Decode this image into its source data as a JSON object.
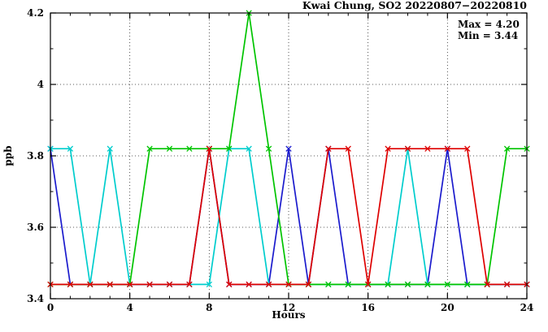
{
  "page": {
    "background": "#ffffff",
    "plot_border_color": "#000000",
    "grid_style": "dotted"
  },
  "chart_data": {
    "type": "line",
    "title": "Kwai Chung, SO2 20220807−20220810",
    "xlabel": "Hours",
    "ylabel": "ppb",
    "xlim": [
      0,
      24
    ],
    "ylim": [
      3.4,
      4.2
    ],
    "grid": "dotted",
    "legend_position": "none",
    "marker": "x-cross",
    "annotations": {
      "max_label": "Max = 4.20",
      "min_label": "Min = 3.44"
    },
    "xticks": {
      "values": [
        0,
        4,
        8,
        12,
        16,
        20,
        24
      ],
      "labels": [
        "0",
        "4",
        "8",
        "12",
        "16",
        "20",
        "24"
      ]
    },
    "yticks": {
      "values": [
        3.4,
        3.6,
        3.8,
        4.0,
        4.2
      ],
      "labels": [
        "3.4",
        "3.6",
        "3.8",
        "4",
        "4.2"
      ]
    },
    "x": [
      0,
      1,
      2,
      3,
      4,
      5,
      6,
      7,
      8,
      9,
      10,
      11,
      12,
      13,
      14,
      15,
      16,
      17,
      18,
      19,
      20,
      21,
      22,
      23,
      24
    ],
    "series": [
      {
        "name": "series-blue",
        "color": "#1b1bcd",
        "values": [
          3.82,
          3.44,
          3.44,
          3.44,
          3.44,
          3.44,
          3.44,
          3.44,
          3.82,
          3.44,
          3.44,
          3.44,
          3.82,
          3.44,
          3.82,
          3.44,
          3.44,
          3.44,
          3.44,
          3.44,
          3.82,
          3.44,
          3.44,
          3.44,
          3.44
        ]
      },
      {
        "name": "series-cyan",
        "color": "#00cdcd",
        "values": [
          3.82,
          3.82,
          3.44,
          3.82,
          3.44,
          3.44,
          3.44,
          3.44,
          3.44,
          3.82,
          3.82,
          3.44,
          3.44,
          3.44,
          3.44,
          3.44,
          3.44,
          3.44,
          3.82,
          3.44,
          3.44,
          3.44,
          3.44,
          3.44,
          3.44
        ]
      },
      {
        "name": "series-green",
        "color": "#00c400",
        "values": [
          3.44,
          3.44,
          3.44,
          3.44,
          3.44,
          3.82,
          3.82,
          3.82,
          3.82,
          3.82,
          4.2,
          3.82,
          3.44,
          3.44,
          3.44,
          3.44,
          3.44,
          3.44,
          3.44,
          3.44,
          3.44,
          3.44,
          3.44,
          3.82,
          3.82
        ]
      },
      {
        "name": "series-red",
        "color": "#de0000",
        "values": [
          3.44,
          3.44,
          3.44,
          3.44,
          3.44,
          3.44,
          3.44,
          3.44,
          3.82,
          3.44,
          3.44,
          3.44,
          3.44,
          3.44,
          3.82,
          3.82,
          3.44,
          3.82,
          3.82,
          3.82,
          3.82,
          3.82,
          3.44,
          3.44,
          3.44
        ]
      }
    ]
  }
}
